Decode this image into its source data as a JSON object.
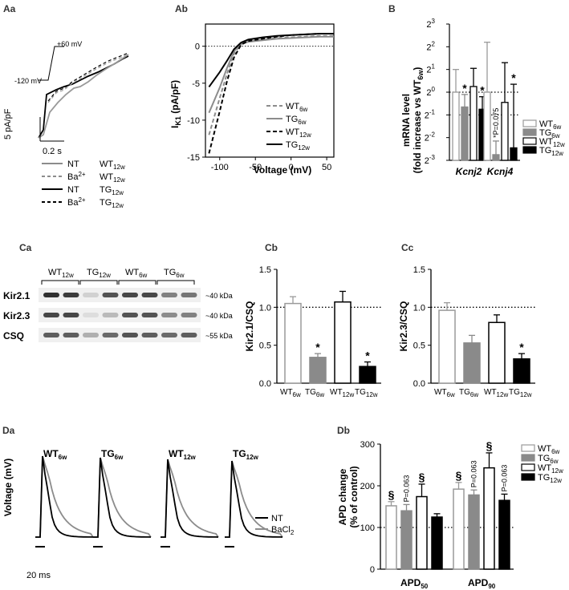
{
  "panel_labels": {
    "Aa": "Aa",
    "Ab": "Ab",
    "B": "B",
    "Ca": "Ca",
    "Cb": "Cb",
    "Cc": "Cc",
    "Da": "Da",
    "Db": "Db"
  },
  "Aa": {
    "protocol": {
      "v_high": "+60 mV",
      "v_low": "-120 mV"
    },
    "scalebar": {
      "y": "5 pA/pF",
      "x": "0.2 s"
    },
    "legend": [
      {
        "cond": "NT",
        "sub": "",
        "grp": "WT",
        "grp_sub": "12w",
        "color": "#8c8c8c",
        "dash": ""
      },
      {
        "cond": "Ba",
        "sub": "2+",
        "grp": "WT",
        "grp_sub": "12w",
        "color": "#8c8c8c",
        "dash": "4,3"
      },
      {
        "cond": "NT",
        "sub": "",
        "grp": "TG",
        "grp_sub": "12w",
        "color": "#000000",
        "dash": ""
      },
      {
        "cond": "Ba",
        "sub": "2+",
        "grp": "TG",
        "grp_sub": "12w",
        "color": "#000000",
        "dash": "4,3"
      }
    ]
  },
  "chart_data": [
    {
      "id": "Ab",
      "type": "line",
      "xlabel": "Voltage (mV)",
      "ylabel": "I",
      "ylabel_sub": "K1",
      "ylabel_unit": " (pA/pF)",
      "xlim": [
        -120,
        60
      ],
      "ylim": [
        -15,
        3
      ],
      "xticks": [
        "-100",
        "-50",
        "0",
        "50"
      ],
      "xtick_values": [
        -100,
        -50,
        0,
        50
      ],
      "yticks": [
        "0",
        "-5",
        "-10",
        "-15"
      ],
      "ytick_values": [
        0,
        -5,
        -10,
        -15
      ],
      "ref_line": 0,
      "series": [
        {
          "name": "WT",
          "sub": "6w",
          "color": "#8c8c8c",
          "dash": "5,3",
          "x": [
            -115,
            -100,
            -90,
            -80,
            -70,
            -60,
            -40,
            -20,
            0,
            20,
            40,
            60
          ],
          "y": [
            -12,
            -7,
            -3.8,
            -1,
            0.3,
            0.6,
            0.9,
            1.1,
            1.2,
            1.3,
            1.4,
            1.4
          ]
        },
        {
          "name": "TG",
          "sub": "6w",
          "color": "#8c8c8c",
          "dash": "",
          "x": [
            -115,
            -100,
            -90,
            -80,
            -70,
            -60,
            -40,
            -20,
            0,
            20,
            40,
            60
          ],
          "y": [
            -9,
            -5.6,
            -3,
            -0.7,
            0.3,
            0.6,
            0.8,
            1,
            1.1,
            1.2,
            1.3,
            1.3
          ]
        },
        {
          "name": "WT",
          "sub": "12w",
          "color": "#000000",
          "dash": "5,3",
          "x": [
            -115,
            -100,
            -90,
            -80,
            -70,
            -60,
            -40,
            -20,
            0,
            20,
            40,
            60
          ],
          "y": [
            -14.5,
            -8.8,
            -4.8,
            -1.5,
            0.2,
            0.7,
            1,
            1.3,
            1.5,
            1.6,
            1.7,
            1.7
          ]
        },
        {
          "name": "TG",
          "sub": "12w",
          "color": "#000000",
          "dash": "",
          "x": [
            -115,
            -100,
            -90,
            -80,
            -70,
            -60,
            -40,
            -20,
            0,
            20,
            40,
            60
          ],
          "y": [
            -5.5,
            -3.5,
            -2,
            -0.4,
            0.5,
            0.9,
            1.2,
            1.4,
            1.5,
            1.6,
            1.7,
            1.7
          ]
        }
      ]
    },
    {
      "id": "B",
      "type": "bar",
      "ylabel_lines": [
        "mRNA level",
        "(fold increase vs WT"
      ],
      "ylabel_sub": "6w",
      "log2": true,
      "ylim_exp": [
        -3,
        3
      ],
      "yticks": [
        "2",
        "2",
        "2",
        "2",
        "2",
        "2",
        "2"
      ],
      "ytick_exps": [
        "3",
        "2",
        "1",
        "0",
        "-1",
        "-2",
        "-3"
      ],
      "categories": [
        "Kcnj2",
        "Kcnj4"
      ],
      "series": [
        {
          "name": "WT",
          "sub": "6w",
          "fill": "#ffffff",
          "stroke": "#9a9a9a",
          "values": [
            0,
            0
          ],
          "err_hi": [
            1,
            2.2
          ]
        },
        {
          "name": "TG",
          "sub": "6w",
          "fill": "#8a8a8a",
          "stroke": "#8a8a8a",
          "values": [
            -0.65,
            -2.75
          ],
          "err_hi": [
            0.55,
            0.6
          ]
        },
        {
          "name": "WT",
          "sub": "12w",
          "fill": "#ffffff",
          "stroke": "#000000",
          "values": [
            0.25,
            -0.45
          ],
          "err_hi": [
            0.8,
            1.75
          ]
        },
        {
          "name": "TG",
          "sub": "12w",
          "fill": "#000000",
          "stroke": "#000000",
          "values": [
            -0.75,
            -2.45
          ],
          "err_hi": [
            0.55,
            2.8
          ]
        }
      ],
      "marks": [
        {
          "cat": 0,
          "s": 1,
          "text": "*",
          "color": "#8a8a8a"
        },
        {
          "cat": 0,
          "s": 3,
          "text": "*",
          "color": "#000000"
        },
        {
          "cat": 1,
          "s": 1,
          "text": "*P=0.075",
          "color": "#555555",
          "vertical": true
        },
        {
          "cat": 1,
          "s": 3,
          "text": "*",
          "color": "#000000"
        }
      ],
      "ref_lines": [
        0,
        -1
      ]
    },
    {
      "id": "Cb",
      "type": "bar",
      "ylabel": "Kir2.1/CSQ",
      "ylim": [
        0,
        1.5
      ],
      "yticks": [
        "0.0",
        "0.5",
        "1.0",
        "1.5"
      ],
      "ytick_values": [
        0,
        0.5,
        1,
        1.5
      ],
      "categories": [
        {
          "a": "WT",
          "s": "6w"
        },
        {
          "a": "TG",
          "s": "6w"
        },
        {
          "a": "WT",
          "s": "12w"
        },
        {
          "a": "TG",
          "s": "12w"
        }
      ],
      "values": [
        1.05,
        0.34,
        1.07,
        0.22
      ],
      "err": [
        0.09,
        0.05,
        0.14,
        0.06
      ],
      "fills": [
        "#ffffff",
        "#8a8a8a",
        "#ffffff",
        "#000000"
      ],
      "strokes": [
        "#9a9a9a",
        "#8a8a8a",
        "#000000",
        "#000000"
      ],
      "marks": [
        {
          "i": 1,
          "text": "*",
          "color": "#8a8a8a"
        },
        {
          "i": 3,
          "text": "*",
          "color": "#000000"
        }
      ],
      "ref_line": 1.0
    },
    {
      "id": "Cc",
      "type": "bar",
      "ylabel": "Kir2.3/CSQ",
      "ylim": [
        0,
        1.5
      ],
      "yticks": [
        "0.0",
        "0.5",
        "1.0",
        "1.5"
      ],
      "ytick_values": [
        0,
        0.5,
        1,
        1.5
      ],
      "categories": [
        {
          "a": "WT",
          "s": "6w"
        },
        {
          "a": "TG",
          "s": "6w"
        },
        {
          "a": "WT",
          "s": "12w"
        },
        {
          "a": "TG",
          "s": "12w"
        }
      ],
      "values": [
        0.96,
        0.53,
        0.8,
        0.32
      ],
      "err": [
        0.1,
        0.1,
        0.1,
        0.07
      ],
      "fills": [
        "#ffffff",
        "#8a8a8a",
        "#ffffff",
        "#000000"
      ],
      "strokes": [
        "#9a9a9a",
        "#8a8a8a",
        "#000000",
        "#000000"
      ],
      "marks": [
        {
          "i": 3,
          "text": "*",
          "color": "#000000"
        }
      ],
      "ref_line": 1.0
    },
    {
      "id": "Db",
      "type": "bar",
      "ylabel_lines": [
        "APD change",
        "(% of control)"
      ],
      "ylim": [
        0,
        300
      ],
      "yticks": [
        "0",
        "100",
        "200",
        "300"
      ],
      "ytick_values": [
        0,
        100,
        200,
        300
      ],
      "categories": [
        {
          "a": "APD",
          "s": "50"
        },
        {
          "a": "APD",
          "s": "90"
        }
      ],
      "series": [
        {
          "name": "WT",
          "sub": "6w",
          "fill": "#ffffff",
          "stroke": "#9a9a9a",
          "values": [
            152,
            192
          ],
          "err": [
            10,
            16
          ]
        },
        {
          "name": "TG",
          "sub": "6w",
          "fill": "#8a8a8a",
          "stroke": "#8a8a8a",
          "values": [
            140,
            178
          ],
          "err": [
            15,
            12
          ]
        },
        {
          "name": "WT",
          "sub": "12w",
          "fill": "#ffffff",
          "stroke": "#000000",
          "values": [
            174,
            243
          ],
          "err": [
            30,
            36
          ]
        },
        {
          "name": "TG",
          "sub": "12w",
          "fill": "#000000",
          "stroke": "#000000",
          "values": [
            125,
            165
          ],
          "err": [
            8,
            15
          ]
        }
      ],
      "marks": [
        {
          "cat": 0,
          "s": 0,
          "text": "§",
          "color": "#000000"
        },
        {
          "cat": 0,
          "s": 1,
          "text": "P=0.063",
          "color": "#333333",
          "vertical": true
        },
        {
          "cat": 0,
          "s": 2,
          "text": "§",
          "color": "#000000"
        },
        {
          "cat": 1,
          "s": 0,
          "text": "§",
          "color": "#000000"
        },
        {
          "cat": 1,
          "s": 1,
          "text": "P=0.063",
          "color": "#333333",
          "vertical": true
        },
        {
          "cat": 1,
          "s": 2,
          "text": "§",
          "color": "#000000"
        },
        {
          "cat": 1,
          "s": 3,
          "text": "P=0.063",
          "color": "#333333",
          "vertical": true
        }
      ],
      "ref_line": 100
    }
  ],
  "Ca": {
    "groups": [
      {
        "a": "WT",
        "s": "12w"
      },
      {
        "a": "TG",
        "s": "12w"
      },
      {
        "a": "WT",
        "s": "6w"
      },
      {
        "a": "TG",
        "s": "6w"
      }
    ],
    "rows": [
      {
        "name": "Kir2.1",
        "kda": "40 kDa"
      },
      {
        "name": "Kir2.3",
        "kda": "40 kDa"
      },
      {
        "name": "CSQ",
        "kda": "55 kDa"
      }
    ],
    "intensities": [
      [
        0.9,
        0.85,
        0.2,
        0.75,
        0.8,
        0.8,
        0.55,
        0.6
      ],
      [
        0.8,
        0.8,
        0.15,
        0.3,
        0.75,
        0.75,
        0.5,
        0.55
      ],
      [
        0.7,
        0.7,
        0.35,
        0.65,
        0.75,
        0.7,
        0.65,
        0.7
      ]
    ]
  },
  "Da": {
    "ylabel": "Voltage (mV)",
    "scalebar": "20 ms",
    "labels": [
      {
        "a": "WT",
        "s": "6w"
      },
      {
        "a": "TG",
        "s": "6w"
      },
      {
        "a": "WT",
        "s": "12w"
      },
      {
        "a": "TG",
        "s": "12w"
      }
    ],
    "legend": [
      {
        "text": "NT",
        "sub": "",
        "color": "#000000"
      },
      {
        "text": "BaCl",
        "sub": "2",
        "color": "#8c8c8c"
      }
    ]
  }
}
